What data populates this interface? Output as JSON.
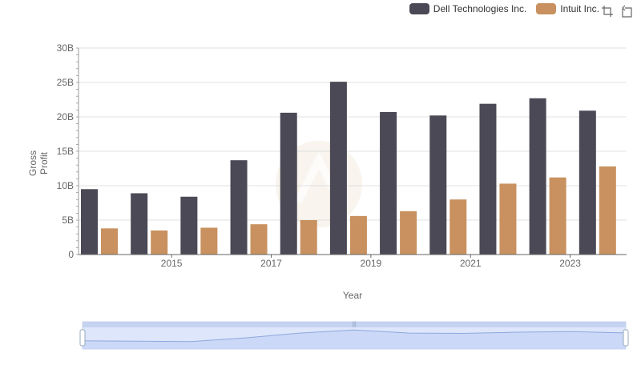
{
  "legend": [
    {
      "name": "Dell Technologies Inc.",
      "color": "#4a4955"
    },
    {
      "name": "Intuit Inc.",
      "color": "#c8915f"
    }
  ],
  "toolbox": {
    "zoom_icon": "zoom-select-icon",
    "restore_icon": "restore-icon"
  },
  "chart_data": {
    "type": "bar",
    "xlabel": "Year",
    "ylabel": "Gross Profit",
    "ylim": [
      0,
      30000000000
    ],
    "yticks": [
      "0",
      "5B",
      "10B",
      "15B",
      "20B",
      "25B",
      "30B"
    ],
    "xtick_labels": [
      "2015",
      "2017",
      "2019",
      "2021",
      "2023"
    ],
    "categories": [
      "2014",
      "2015",
      "2016",
      "2017",
      "2018",
      "2019",
      "2020",
      "2021",
      "2022",
      "2023",
      "2024"
    ],
    "grid": true,
    "legend_position": "top-right",
    "series": [
      {
        "name": "Dell Technologies Inc.",
        "color": "#4a4955",
        "values": [
          9500000000,
          8900000000,
          8400000000,
          13700000000,
          20600000000,
          25100000000,
          20700000000,
          20200000000,
          21900000000,
          22700000000,
          20900000000
        ]
      },
      {
        "name": "Intuit Inc.",
        "color": "#c8915f",
        "values": [
          3800000000,
          3500000000,
          3900000000,
          4400000000,
          5000000000,
          5600000000,
          6300000000,
          8000000000,
          10300000000,
          11200000000,
          12800000000
        ]
      }
    ]
  }
}
